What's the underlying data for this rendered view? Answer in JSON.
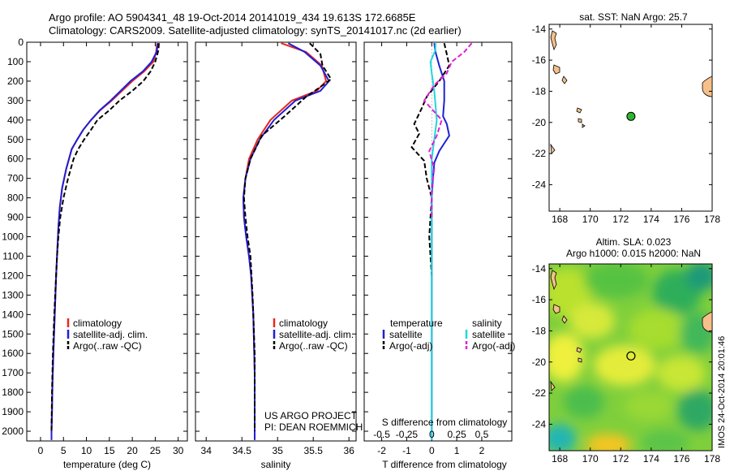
{
  "header": {
    "line1": "Argo profile: AO 5904341_48 19-Oct-2014 20141019_434 19.613S 172.6685E",
    "line2": "Climatology: CARS2009. Satellite-adjusted climatology: synTS_20141017.nc (2d earlier)"
  },
  "colors": {
    "climatology": "#e8281e",
    "satellite": "#1f1fd6",
    "argo": "#000000",
    "salinity_satellite": "#22d6dc",
    "salinity_argo": "#e020d8",
    "marker": "#2db52d",
    "land": "#f5c08a"
  },
  "credits": {
    "project": "US ARGO PROJECT",
    "pi": "PI: DEAN ROEMMICH"
  },
  "stamp": "IMOS 24-Oct-2014 20:01:46",
  "chart_data": [
    {
      "type": "line",
      "name": "temperature",
      "xlabel": "temperature (deg C)",
      "ylabel": "",
      "xlim": [
        -3,
        32
      ],
      "ylim": [
        2050,
        0
      ],
      "xticks": [
        0,
        5,
        10,
        15,
        20,
        25,
        30
      ],
      "yticks": [
        0,
        100,
        200,
        300,
        400,
        500,
        600,
        700,
        800,
        900,
        1000,
        1100,
        1200,
        1300,
        1400,
        1500,
        1600,
        1700,
        1800,
        1900,
        2000
      ],
      "legend": [
        "climatology",
        "satellite-adj. clim.",
        "Argo(..raw -QC)"
      ],
      "legend_position": "bottom-center",
      "series": [
        {
          "name": "climatology",
          "x": [
            25.4,
            25.2,
            24.6,
            22.6,
            20,
            15.5,
            13,
            11,
            9.3,
            8,
            6.8,
            5.6,
            4.7,
            4.2,
            3.9,
            3.6,
            3.4,
            3.1,
            2.8,
            2.6,
            2.5,
            2.4,
            2.4
          ],
          "y": [
            5,
            50,
            100,
            150,
            200,
            300,
            350,
            400,
            450,
            500,
            550,
            650,
            750,
            850,
            950,
            1100,
            1200,
            1400,
            1600,
            1750,
            1900,
            2000,
            2045
          ]
        },
        {
          "name": "satellite-adj. clim.",
          "x": [
            25.6,
            25.3,
            24.2,
            22.3,
            19.6,
            15.3,
            12.9,
            11,
            9.3,
            8,
            6.8,
            5.6,
            4.7,
            4.2,
            3.9,
            3.6,
            3.4,
            3.1,
            2.8,
            2.6,
            2.5,
            2.4,
            2.4
          ],
          "y": [
            5,
            50,
            100,
            150,
            200,
            300,
            350,
            400,
            450,
            500,
            550,
            650,
            750,
            850,
            950,
            1100,
            1200,
            1400,
            1600,
            1750,
            1900,
            2000,
            2045
          ]
        },
        {
          "name": "Argo(..raw -QC)",
          "x": [
            25.8,
            25.7,
            25,
            24,
            22.4,
            20,
            17.2,
            15,
            12.4,
            11,
            9.5,
            8.2,
            7.2,
            6,
            5,
            4.3,
            3.9,
            3.6,
            3.3,
            3,
            2.7,
            2.5,
            2.4
          ],
          "y": [
            5,
            40,
            100,
            150,
            200,
            250,
            300,
            350,
            400,
            450,
            500,
            550,
            600,
            700,
            800,
            900,
            1000,
            1100,
            1250,
            1400,
            1600,
            1800,
            2000
          ]
        }
      ]
    },
    {
      "type": "line",
      "name": "salinity",
      "xlabel": "salinity",
      "ylabel": "",
      "xlim": [
        33.85,
        36.1
      ],
      "ylim": [
        2050,
        0
      ],
      "xticks": [
        34,
        34.5,
        35,
        35.5,
        36
      ],
      "legend": [
        "climatology",
        "satellite-adj. clim.",
        "Argo(..raw -QC)"
      ],
      "legend_position": "bottom-center",
      "series": [
        {
          "name": "climatology",
          "x": [
            35.05,
            35.4,
            35.62,
            35.68,
            35.55,
            35.2,
            34.9,
            34.72,
            34.6,
            34.55,
            34.52,
            34.53,
            34.56,
            34.6,
            34.63,
            34.66,
            34.68,
            34.68
          ],
          "y": [
            5,
            50,
            120,
            200,
            250,
            300,
            400,
            500,
            600,
            700,
            800,
            900,
            1000,
            1100,
            1200,
            1400,
            1700,
            2045
          ]
        },
        {
          "name": "satellite-adj. clim.",
          "x": [
            35.15,
            35.38,
            35.6,
            35.72,
            35.6,
            35.25,
            34.95,
            34.75,
            34.62,
            34.55,
            34.52,
            34.53,
            34.56,
            34.6,
            34.63,
            34.66,
            34.68,
            34.68
          ],
          "y": [
            5,
            50,
            120,
            200,
            250,
            300,
            400,
            500,
            600,
            700,
            800,
            900,
            1000,
            1100,
            1200,
            1400,
            1700,
            2045
          ]
        },
        {
          "name": "Argo(..raw -QC)",
          "x": [
            35.45,
            35.6,
            35.63,
            35.75,
            35.6,
            35.4,
            35.1,
            34.78,
            34.62,
            34.55,
            34.53,
            34.55,
            34.58,
            34.62,
            34.65,
            34.68,
            34.68
          ],
          "y": [
            5,
            60,
            120,
            190,
            230,
            280,
            380,
            480,
            600,
            700,
            800,
            900,
            1000,
            1100,
            1300,
            1600,
            2000
          ]
        }
      ]
    },
    {
      "type": "line",
      "name": "difference",
      "xlabel": "T difference from climatology",
      "xlabel_top": "S difference from climatology",
      "xlim": [
        -2.7,
        3.2
      ],
      "ylim": [
        2050,
        0
      ],
      "xticks_T": [
        -2,
        -1,
        0,
        1,
        2
      ],
      "xticks_S": [
        "-0.5",
        "-0.25",
        "0",
        "0.25",
        "0.5"
      ],
      "legend_headers": [
        "temperature",
        "salinity"
      ],
      "legend": [
        "satellite",
        "Argo(-adj)",
        "satellite",
        "Argo(-adj)"
      ],
      "legend_position": "bottom-center",
      "series": [
        {
          "name": "temperature satellite",
          "x": [
            0.1,
            0.15,
            0.3,
            0.5,
            0.5,
            0.45,
            0.6,
            0.7,
            0.5,
            0.3,
            0.1,
            0.05,
            0,
            0
          ],
          "y": [
            5,
            50,
            120,
            200,
            300,
            380,
            420,
            480,
            520,
            560,
            620,
            700,
            800,
            2045
          ]
        },
        {
          "name": "temperature Argo(-adj)",
          "x": [
            0.5,
            0.6,
            0.7,
            0.3,
            -0.2,
            -0.4,
            -0.7,
            -0.5,
            -0.8,
            -0.3,
            -0.2,
            0,
            -0.1,
            0
          ],
          "y": [
            5,
            60,
            120,
            200,
            280,
            340,
            420,
            470,
            540,
            610,
            700,
            800,
            1000,
            1200
          ]
        },
        {
          "name": "salinity satellite",
          "x": [
            0.15,
            0.15,
            -0.05,
            0,
            0.1,
            0.2,
            0,
            0
          ],
          "y": [
            5,
            40,
            100,
            160,
            250,
            400,
            600,
            2045
          ]
        },
        {
          "name": "salinity Argo(-adj)",
          "x": [
            1.6,
            1.3,
            0.8,
            0.6,
            0.1,
            -0.3,
            0.4,
            0.2,
            -0.1,
            0.1,
            0,
            0
          ],
          "y": [
            5,
            50,
            100,
            160,
            220,
            300,
            400,
            480,
            560,
            650,
            750,
            900
          ]
        }
      ]
    },
    {
      "type": "scatter",
      "name": "location map",
      "title": "sat. SST: NaN  Argo: 25.7",
      "xlim": [
        167.3,
        178
      ],
      "ylim": [
        -25.7,
        -13.7
      ],
      "xticks": [
        168,
        170,
        172,
        174,
        176,
        178
      ],
      "yticks": [
        -14,
        -16,
        -18,
        -20,
        -22,
        -24
      ],
      "points": [
        {
          "x": 172.67,
          "y": -19.61
        }
      ]
    },
    {
      "type": "heatmap",
      "name": "sea level anomaly map",
      "title_line1": "Altim. SLA: 0.023",
      "title_line2": "Argo h1000: 0.015 h2000: NaN",
      "xlim": [
        167.3,
        178
      ],
      "ylim": [
        -25.7,
        -13.7
      ],
      "xticks": [
        168,
        170,
        172,
        174,
        176,
        178
      ],
      "yticks": [
        -14,
        -16,
        -18,
        -20,
        -22,
        -24
      ],
      "points": [
        {
          "x": 172.67,
          "y": -19.61
        }
      ]
    }
  ]
}
